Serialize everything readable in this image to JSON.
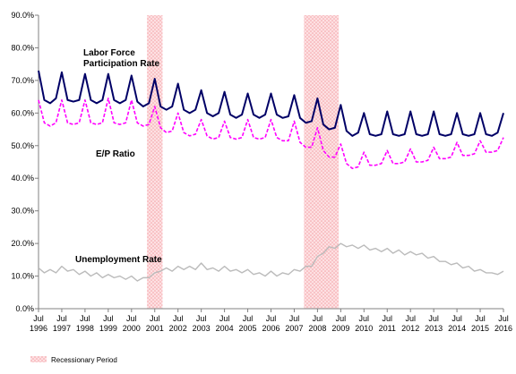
{
  "chart_data": {
    "type": "line",
    "xlim": [
      "1996-07",
      "2016-07"
    ],
    "ylim": [
      0,
      90
    ],
    "y_ticks": [
      "0.0%",
      "10.0%",
      "20.0%",
      "30.0%",
      "40.0%",
      "50.0%",
      "60.0%",
      "70.0%",
      "80.0%",
      "90.0%"
    ],
    "x_ticks": [
      {
        "month": "Jul",
        "year": "1996"
      },
      {
        "month": "Jul",
        "year": "1997"
      },
      {
        "month": "Jul",
        "year": "1998"
      },
      {
        "month": "Jul",
        "year": "1999"
      },
      {
        "month": "Jul",
        "year": "2000"
      },
      {
        "month": "Jul",
        "year": "2001"
      },
      {
        "month": "Jul",
        "year": "2002"
      },
      {
        "month": "Jul",
        "year": "2003"
      },
      {
        "month": "Jul",
        "year": "2004"
      },
      {
        "month": "Jul",
        "year": "2005"
      },
      {
        "month": "Jul",
        "year": "2006"
      },
      {
        "month": "Jul",
        "year": "2007"
      },
      {
        "month": "Jul",
        "year": "2008"
      },
      {
        "month": "Jul",
        "year": "2009"
      },
      {
        "month": "Jul",
        "year": "2010"
      },
      {
        "month": "Jul",
        "year": "2011"
      },
      {
        "month": "Jul",
        "year": "2012"
      },
      {
        "month": "Jul",
        "year": "2013"
      },
      {
        "month": "Jul",
        "year": "2014"
      },
      {
        "month": "Jul",
        "year": "2015"
      },
      {
        "month": "Jul",
        "year": "2016"
      }
    ],
    "grid": false,
    "recessions": [
      {
        "start": "2001-03",
        "end": "2001-11"
      },
      {
        "start": "2007-12",
        "end": "2009-06"
      }
    ],
    "legend": {
      "label": "Recessionary Period",
      "position": "bottom-left"
    },
    "annotations": [
      {
        "text": "Labor Force",
        "series": "Labor Force Participation Rate"
      },
      {
        "text": "Participation Rate",
        "series": "Labor Force Participation Rate"
      },
      {
        "text": "E/P Ratio",
        "series": "E/P Ratio"
      },
      {
        "text": "Unemployment  Rate",
        "series": "Unemployment Rate"
      }
    ],
    "series": [
      {
        "name": "Labor Force Participation Rate",
        "color": "#000066",
        "style": "solid",
        "x": [
          "1996-07",
          "1996-10",
          "1997-01",
          "1997-04",
          "1997-07",
          "1997-10",
          "1998-01",
          "1998-04",
          "1998-07",
          "1998-10",
          "1999-01",
          "1999-04",
          "1999-07",
          "1999-10",
          "2000-01",
          "2000-04",
          "2000-07",
          "2000-10",
          "2001-01",
          "2001-04",
          "2001-07",
          "2001-10",
          "2002-01",
          "2002-04",
          "2002-07",
          "2002-10",
          "2003-01",
          "2003-04",
          "2003-07",
          "2003-10",
          "2004-01",
          "2004-04",
          "2004-07",
          "2004-10",
          "2005-01",
          "2005-04",
          "2005-07",
          "2005-10",
          "2006-01",
          "2006-04",
          "2006-07",
          "2006-10",
          "2007-01",
          "2007-04",
          "2007-07",
          "2007-10",
          "2008-01",
          "2008-04",
          "2008-07",
          "2008-10",
          "2009-01",
          "2009-04",
          "2009-07",
          "2009-10",
          "2010-01",
          "2010-04",
          "2010-07",
          "2010-10",
          "2011-01",
          "2011-04",
          "2011-07",
          "2011-10",
          "2012-01",
          "2012-04",
          "2012-07",
          "2012-10",
          "2013-01",
          "2013-04",
          "2013-07",
          "2013-10",
          "2014-01",
          "2014-04",
          "2014-07",
          "2014-10",
          "2015-01",
          "2015-04",
          "2015-07",
          "2015-10",
          "2016-01",
          "2016-04",
          "2016-07"
        ],
        "values": [
          73.0,
          64.0,
          63.0,
          64.5,
          72.5,
          64.0,
          63.5,
          64.0,
          72.0,
          64.0,
          63.0,
          64.0,
          72.0,
          64.0,
          63.0,
          64.0,
          71.5,
          63.5,
          62.0,
          63.0,
          70.5,
          62.0,
          61.0,
          62.0,
          69.0,
          61.0,
          60.0,
          61.0,
          67.0,
          60.0,
          59.0,
          60.0,
          66.5,
          59.5,
          58.5,
          59.5,
          66.0,
          59.5,
          58.5,
          59.5,
          66.0,
          59.5,
          58.5,
          59.0,
          65.5,
          58.5,
          57.0,
          57.5,
          64.5,
          56.5,
          55.0,
          55.5,
          62.5,
          54.5,
          53.0,
          54.0,
          60.0,
          53.5,
          53.0,
          53.5,
          60.5,
          53.5,
          53.0,
          53.5,
          60.5,
          53.5,
          53.0,
          53.5,
          60.5,
          53.5,
          53.0,
          53.5,
          60.0,
          53.5,
          53.0,
          53.5,
          60.0,
          53.5,
          53.0,
          54.0,
          60.0
        ]
      },
      {
        "name": "E/P Ratio",
        "color": "#ff00ff",
        "style": "dashed",
        "x": [
          "1996-07",
          "1996-10",
          "1997-01",
          "1997-04",
          "1997-07",
          "1997-10",
          "1998-01",
          "1998-04",
          "1998-07",
          "1998-10",
          "1999-01",
          "1999-04",
          "1999-07",
          "1999-10",
          "2000-01",
          "2000-04",
          "2000-07",
          "2000-10",
          "2001-01",
          "2001-04",
          "2001-07",
          "2001-10",
          "2002-01",
          "2002-04",
          "2002-07",
          "2002-10",
          "2003-01",
          "2003-04",
          "2003-07",
          "2003-10",
          "2004-01",
          "2004-04",
          "2004-07",
          "2004-10",
          "2005-01",
          "2005-04",
          "2005-07",
          "2005-10",
          "2006-01",
          "2006-04",
          "2006-07",
          "2006-10",
          "2007-01",
          "2007-04",
          "2007-07",
          "2007-10",
          "2008-01",
          "2008-04",
          "2008-07",
          "2008-10",
          "2009-01",
          "2009-04",
          "2009-07",
          "2009-10",
          "2010-01",
          "2010-04",
          "2010-07",
          "2010-10",
          "2011-01",
          "2011-04",
          "2011-07",
          "2011-10",
          "2012-01",
          "2012-04",
          "2012-07",
          "2012-10",
          "2013-01",
          "2013-04",
          "2013-07",
          "2013-10",
          "2014-01",
          "2014-04",
          "2014-07",
          "2014-10",
          "2015-01",
          "2015-04",
          "2015-07",
          "2015-10",
          "2016-01",
          "2016-04",
          "2016-07"
        ],
        "values": [
          64.0,
          57.0,
          56.0,
          57.0,
          64.0,
          57.0,
          56.5,
          57.0,
          64.0,
          57.0,
          56.5,
          57.0,
          64.5,
          57.0,
          56.5,
          57.0,
          64.0,
          57.0,
          56.0,
          56.5,
          62.0,
          55.5,
          54.0,
          54.5,
          60.0,
          54.0,
          53.0,
          53.5,
          58.0,
          53.0,
          52.0,
          52.5,
          57.5,
          52.5,
          52.0,
          52.5,
          58.0,
          52.5,
          52.0,
          52.5,
          58.0,
          52.5,
          51.5,
          51.5,
          57.5,
          51.0,
          49.5,
          49.5,
          55.5,
          48.5,
          46.5,
          46.5,
          50.5,
          44.5,
          43.0,
          43.5,
          48.0,
          44.0,
          44.0,
          44.5,
          48.5,
          44.5,
          44.5,
          45.0,
          49.0,
          45.0,
          45.0,
          45.5,
          49.5,
          46.0,
          46.0,
          46.5,
          51.0,
          47.0,
          47.0,
          47.5,
          51.5,
          48.0,
          48.0,
          48.5,
          52.5
        ]
      },
      {
        "name": "Unemployment Rate",
        "color": "#bbbbbb",
        "style": "solid",
        "x": [
          "1996-07",
          "1996-10",
          "1997-01",
          "1997-04",
          "1997-07",
          "1997-10",
          "1998-01",
          "1998-04",
          "1998-07",
          "1998-10",
          "1999-01",
          "1999-04",
          "1999-07",
          "1999-10",
          "2000-01",
          "2000-04",
          "2000-07",
          "2000-10",
          "2001-01",
          "2001-04",
          "2001-07",
          "2001-10",
          "2002-01",
          "2002-04",
          "2002-07",
          "2002-10",
          "2003-01",
          "2003-04",
          "2003-07",
          "2003-10",
          "2004-01",
          "2004-04",
          "2004-07",
          "2004-10",
          "2005-01",
          "2005-04",
          "2005-07",
          "2005-10",
          "2006-01",
          "2006-04",
          "2006-07",
          "2006-10",
          "2007-01",
          "2007-04",
          "2007-07",
          "2007-10",
          "2008-01",
          "2008-04",
          "2008-07",
          "2008-10",
          "2009-01",
          "2009-04",
          "2009-07",
          "2009-10",
          "2010-01",
          "2010-04",
          "2010-07",
          "2010-10",
          "2011-01",
          "2011-04",
          "2011-07",
          "2011-10",
          "2012-01",
          "2012-04",
          "2012-07",
          "2012-10",
          "2013-01",
          "2013-04",
          "2013-07",
          "2013-10",
          "2014-01",
          "2014-04",
          "2014-07",
          "2014-10",
          "2015-01",
          "2015-04",
          "2015-07",
          "2015-10",
          "2016-01",
          "2016-04",
          "2016-07"
        ],
        "values": [
          12.5,
          11.0,
          12.0,
          11.0,
          13.0,
          11.5,
          12.0,
          10.5,
          11.5,
          10.0,
          11.0,
          9.5,
          10.5,
          9.5,
          10.0,
          9.0,
          10.0,
          8.5,
          9.5,
          9.5,
          11.0,
          11.5,
          12.5,
          11.5,
          13.0,
          12.0,
          13.0,
          12.0,
          14.0,
          12.0,
          12.5,
          11.5,
          13.0,
          11.5,
          12.0,
          11.0,
          12.0,
          10.5,
          11.0,
          10.0,
          11.5,
          10.0,
          11.0,
          10.5,
          12.0,
          11.5,
          13.0,
          13.0,
          16.0,
          17.0,
          19.0,
          18.5,
          20.0,
          19.0,
          19.5,
          18.5,
          19.5,
          18.0,
          18.5,
          17.5,
          18.5,
          17.0,
          18.0,
          16.5,
          17.5,
          16.5,
          17.0,
          15.5,
          16.0,
          14.5,
          14.5,
          13.5,
          14.0,
          12.5,
          13.0,
          11.5,
          12.0,
          11.0,
          11.0,
          10.5,
          11.5
        ]
      }
    ]
  }
}
